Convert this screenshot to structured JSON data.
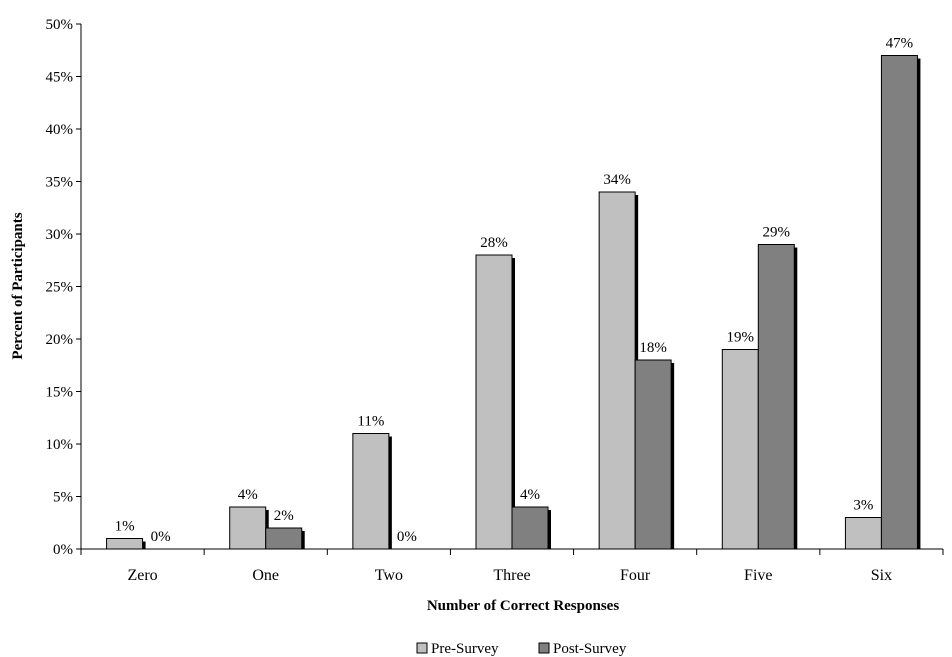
{
  "chart_data": {
    "type": "bar",
    "categories": [
      "Zero",
      "One",
      "Two",
      "Three",
      "Four",
      "Five",
      "Six"
    ],
    "series": [
      {
        "name": "Pre-Survey",
        "values": [
          1,
          4,
          11,
          28,
          34,
          19,
          3
        ],
        "color": "#c0c0c0"
      },
      {
        "name": "Post-Survey",
        "values": [
          0,
          2,
          0,
          4,
          18,
          29,
          47
        ],
        "color": "#808080"
      }
    ],
    "value_suffix": "%",
    "xlabel": "Number of Correct Responses",
    "ylabel": "Percent of Participants",
    "ylim": [
      0,
      50
    ],
    "yticks": [
      0,
      5,
      10,
      15,
      20,
      25,
      30,
      35,
      40,
      45,
      50
    ],
    "ytick_labels": [
      "0%",
      "5%",
      "10%",
      "15%",
      "20%",
      "25%",
      "30%",
      "35%",
      "40%",
      "45%",
      "50%"
    ],
    "grid": false,
    "legend_position": "bottom"
  }
}
